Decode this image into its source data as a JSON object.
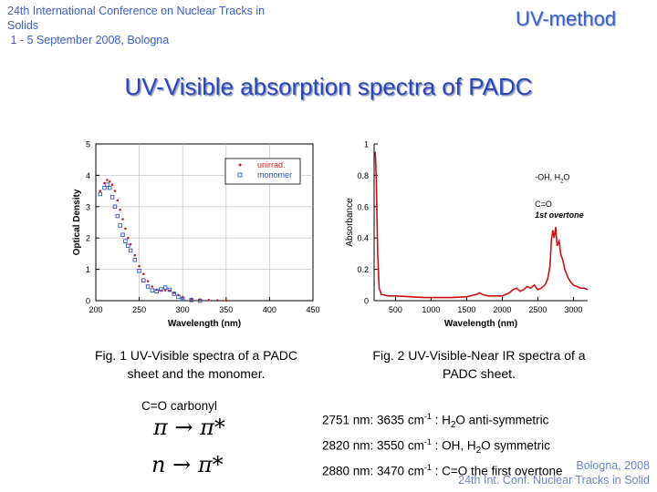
{
  "header": {
    "conference_lines": [
      "24th International Conference on Nuclear Tracks in",
      "Solids",
      " 1 - 5 September 2008, Bologna"
    ],
    "method_label": "UV-method",
    "title": "UV-Visible absorption spectra of PADC",
    "title_color": "#2a46b8"
  },
  "captions": {
    "fig1": "Fig. 1 UV-Visible spectra of a PADC sheet and the monomer.",
    "fig2": "Fig. 2 UV-Visible-Near IR spectra of a PADC sheet.",
    "carbonyl": "C=O carbonyl",
    "transitions": [
      "π → π*",
      "n → π*"
    ]
  },
  "assignments": [
    {
      "nm": "2751 nm: 3635 cm",
      "sup": "-1",
      "rest_a": " : H",
      "sub": "2",
      "rest_b": "O anti-symmetric"
    },
    {
      "nm": "2820 nm: 3550 cm",
      "sup": "-1",
      "rest_a": " : OH, H",
      "sub": "2",
      "rest_b": "O symmetric"
    },
    {
      "nm": "2880 nm: 3470 cm",
      "sup": "-1",
      "rest_a": " : C=O the first overtone",
      "sub": "",
      "rest_b": ""
    }
  ],
  "footer": {
    "lines": [
      "Bologna,  2008",
      "24th Int. Conf. Nuclear Tracks in Solid"
    ]
  },
  "chart_data": [
    {
      "type": "scatter",
      "title": "",
      "xlabel": "Wavelength (nm)",
      "ylabel": "Optical Density",
      "xlim": [
        200,
        450
      ],
      "ylim": [
        0,
        5
      ],
      "xticks": [
        200,
        250,
        300,
        350,
        400,
        450
      ],
      "yticks": [
        0,
        1,
        2,
        3,
        4,
        5
      ],
      "grid": true,
      "legend_position": "top-right",
      "series": [
        {
          "name": "unirrad.",
          "color": "#cc2222",
          "x": [
            205,
            210,
            213,
            216,
            219,
            222,
            225,
            228,
            231,
            234,
            237,
            240,
            245,
            250,
            255,
            260,
            265,
            270,
            275,
            280,
            285,
            290,
            295,
            300,
            310,
            320,
            330,
            340,
            350
          ],
          "y": [
            3.5,
            3.75,
            3.85,
            3.8,
            3.7,
            3.5,
            3.2,
            2.9,
            2.6,
            2.3,
            2.0,
            1.8,
            1.45,
            1.1,
            0.85,
            0.62,
            0.45,
            0.35,
            0.32,
            0.33,
            0.32,
            0.25,
            0.18,
            0.12,
            0.06,
            0.03,
            0.02,
            0.01,
            0.0
          ]
        },
        {
          "name": "monomer",
          "color": "#3355cc",
          "x": [
            205,
            210,
            213,
            216,
            219,
            222,
            225,
            228,
            231,
            234,
            237,
            240,
            245,
            250,
            255,
            260,
            265,
            270,
            275,
            280,
            285,
            290,
            295,
            300,
            310,
            320
          ],
          "y": [
            3.4,
            3.6,
            3.7,
            3.6,
            3.3,
            3.0,
            2.7,
            2.4,
            2.1,
            1.9,
            1.75,
            1.6,
            1.3,
            0.95,
            0.65,
            0.45,
            0.33,
            0.3,
            0.36,
            0.42,
            0.35,
            0.22,
            0.12,
            0.06,
            0.02,
            0.0
          ]
        }
      ]
    },
    {
      "type": "line",
      "title": "",
      "xlabel": "Wavelength (nm)",
      "ylabel": "Absorbance",
      "xlim": [
        200,
        3200
      ],
      "ylim": [
        0,
        1
      ],
      "xticks": [
        500,
        1000,
        1500,
        2000,
        2500,
        3000
      ],
      "yticks": [
        0,
        0.2,
        0.4,
        0.6,
        0.8,
        1
      ],
      "ytick_labels": [
        "0",
        "0.2",
        "0.4",
        "0.6",
        "0.8",
        "1"
      ],
      "grid": false,
      "annotations": [
        {
          "text": "-OH, H",
          "sub": "2",
          "tail": "O",
          "x": 2560,
          "y": 0.77
        },
        {
          "text": "C=O",
          "x": 2560,
          "y": 0.6
        },
        {
          "text": "1st overtone",
          "x": 2560,
          "y": 0.53
        }
      ],
      "series": [
        {
          "name": "",
          "color": "#cc1111",
          "x": [
            215,
            230,
            250,
            270,
            300,
            400,
            500,
            700,
            900,
            1100,
            1300,
            1500,
            1640,
            1680,
            1720,
            1800,
            2000,
            2100,
            2150,
            2200,
            2250,
            2300,
            2350,
            2400,
            2450,
            2500,
            2550,
            2600,
            2640,
            2670,
            2690,
            2710,
            2730,
            2751,
            2770,
            2800,
            2820,
            2850,
            2880,
            2920,
            2960,
            3000,
            3050,
            3100,
            3150,
            3200
          ],
          "y": [
            0.95,
            0.8,
            0.3,
            0.08,
            0.04,
            0.03,
            0.03,
            0.025,
            0.02,
            0.02,
            0.02,
            0.025,
            0.04,
            0.05,
            0.04,
            0.03,
            0.03,
            0.05,
            0.07,
            0.08,
            0.06,
            0.07,
            0.09,
            0.08,
            0.1,
            0.07,
            0.08,
            0.1,
            0.14,
            0.22,
            0.38,
            0.45,
            0.4,
            0.47,
            0.35,
            0.38,
            0.3,
            0.26,
            0.2,
            0.15,
            0.12,
            0.1,
            0.09,
            0.08,
            0.08,
            0.07
          ]
        }
      ]
    }
  ]
}
